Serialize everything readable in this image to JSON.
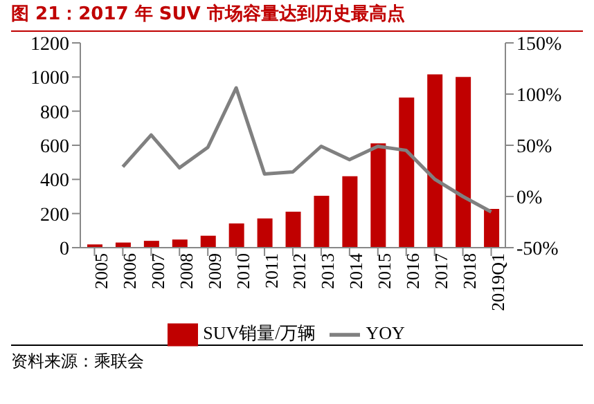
{
  "chart_data": {
    "type": "bar",
    "title": "图 21：2017 年 SUV 市场容量达到历史最高点",
    "categories": [
      "2005",
      "2006",
      "2007",
      "2008",
      "2009",
      "2010",
      "2011",
      "2012",
      "2013",
      "2014",
      "2015",
      "2016",
      "2017",
      "2018",
      "2019Q1"
    ],
    "series": [
      {
        "name": "SUV销量/万辆",
        "color": "#c00000",
        "values": [
          19,
          30,
          40,
          48,
          70,
          142,
          171,
          211,
          304,
          419,
          611,
          880,
          1016,
          1000,
          227
        ]
      },
      {
        "name": "YOY",
        "type": "line",
        "axis": "y2",
        "color": "#808080",
        "values": [
          null,
          29,
          60,
          28,
          48,
          106,
          22,
          24,
          49,
          36,
          49,
          45,
          17,
          0,
          -15
        ]
      }
    ],
    "ylim": [
      0,
      1200
    ],
    "yticks": [
      0,
      200,
      400,
      600,
      800,
      1000,
      1200
    ],
    "y2lim": [
      -50,
      150
    ],
    "y2ticks": [
      {
        "value": -50,
        "label": "-50%"
      },
      {
        "value": 0,
        "label": "0%"
      },
      {
        "value": 50,
        "label": "50%"
      },
      {
        "value": 100,
        "label": "100%"
      },
      {
        "value": 150,
        "label": "150%"
      }
    ],
    "grid": false,
    "legend": "bottom",
    "marker": "none",
    "line_style": "solid",
    "annotations": [
      "资料来源：乘联会"
    ]
  }
}
